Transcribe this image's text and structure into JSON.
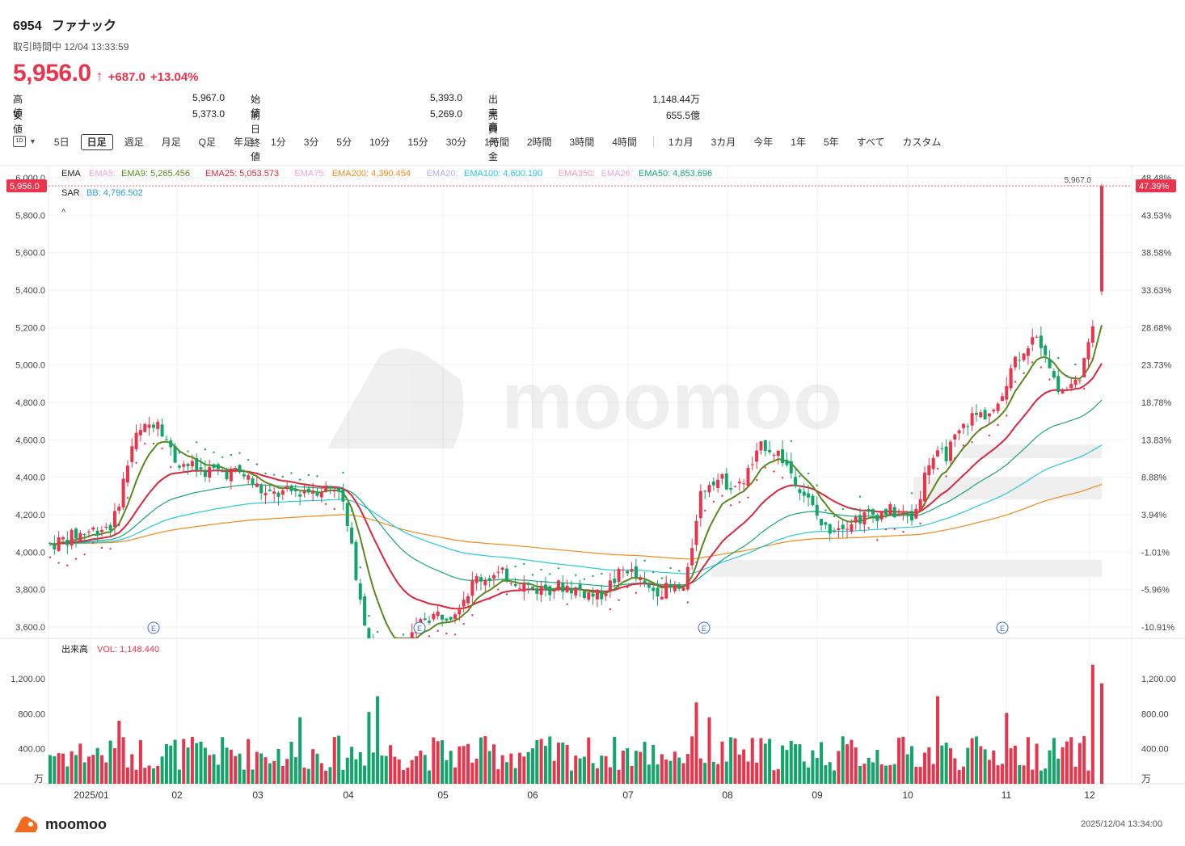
{
  "header": {
    "code": "6954",
    "name": "ファナック",
    "status": "取引時間中 12/04 13:33:59",
    "price": "5,956.0",
    "change": "+687.0",
    "change_pct": "+13.04%"
  },
  "stats": [
    {
      "label": "高値",
      "value": "5,967.0"
    },
    {
      "label": "安値",
      "value": "5,373.0"
    },
    {
      "label": "始値",
      "value": "5,393.0"
    },
    {
      "label": "前日終値",
      "value": "5,269.0"
    },
    {
      "label": "出来高",
      "value": "1,148.44万"
    },
    {
      "label": "売買代金",
      "value": "655.5億"
    }
  ],
  "toolbar": {
    "icon_label": "1D",
    "periods": [
      "5日",
      "日足",
      "週足",
      "月足",
      "Q足",
      "年足",
      "1分",
      "3分",
      "5分",
      "10分",
      "15分",
      "30分",
      "1時間",
      "2時間",
      "3時間",
      "4時間"
    ],
    "ranges": [
      "1カ月",
      "3カ月",
      "今年",
      "1年",
      "5年",
      "すべて",
      "カスタム"
    ],
    "active": "日足"
  },
  "indicators": {
    "ema_label": "EMA",
    "ema_items": [
      {
        "label": "EMA5:",
        "color": "#e9a6d8"
      },
      {
        "label": "EMA9: 5,265.456",
        "color": "#5a8a1e"
      },
      {
        "label": "EMA25: 5,053.573",
        "color": "#d8283f"
      },
      {
        "label": "EMA75:",
        "color": "#e9a6d8"
      },
      {
        "label": "EMA200: 4,390.454",
        "color": "#f08a1c"
      },
      {
        "label": "EMA20:",
        "color": "#b7aee8"
      },
      {
        "label": "EMA100: 4,600.190",
        "color": "#27c8d8"
      },
      {
        "label": "EMA350:",
        "color": "#f0a0b0"
      },
      {
        "label": "EMA26:",
        "color": "#e9a6d8"
      },
      {
        "label": "EMA50: 4,853.696",
        "color": "#17a67a"
      }
    ],
    "sar_label": "SAR",
    "bb_label": "BB: 4,796.502",
    "collapse": "^"
  },
  "price_axis": {
    "left_ticks": [
      "6,000.0",
      "5,800.0",
      "5,600.0",
      "5,400.0",
      "5,200.0",
      "5,000.0",
      "4,800.0",
      "4,600.0",
      "4,400.0",
      "4,200.0",
      "4,000.0",
      "3,800.0",
      "3,600.0"
    ],
    "right_ticks": [
      "48.48%",
      "43.53%",
      "38.58%",
      "33.63%",
      "28.68%",
      "23.73%",
      "18.78%",
      "13.83%",
      "8.88%",
      "3.94%",
      "-1.01%",
      "-5.96%",
      "-10.91%"
    ],
    "current_label": "5,956.0",
    "current_pct": "47.39%",
    "high_label": "5,967.0"
  },
  "volume": {
    "title": "出来高",
    "vol_label": "VOL: 1,148.440",
    "ticks": [
      "1,200.00",
      "800.00",
      "400.00"
    ],
    "unit": "万"
  },
  "x_axis": [
    "2025/01",
    "02",
    "03",
    "04",
    "05",
    "06",
    "07",
    "08",
    "09",
    "10",
    "11",
    "12"
  ],
  "earnings_marker": "E",
  "watermark": "moomoo",
  "footer": {
    "brand": "moomoo",
    "timestamp": "2025/12/04 13:34:00"
  },
  "colors": {
    "up": "#e8354d",
    "down": "#13a46a"
  }
}
